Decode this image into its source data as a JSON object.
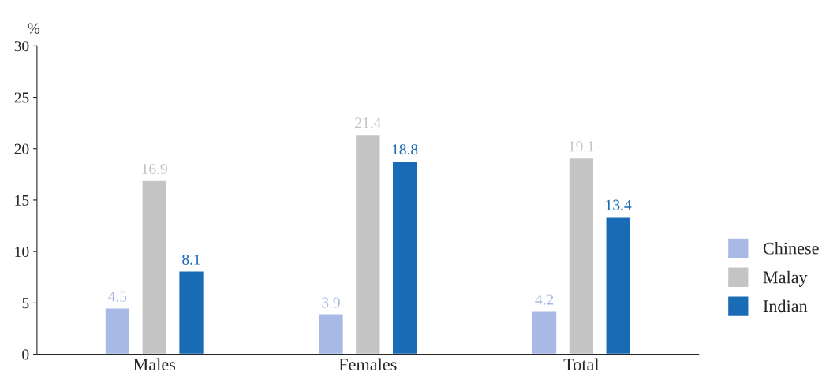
{
  "chart_data": {
    "type": "bar",
    "ylabel": "%",
    "categories": [
      "Males",
      "Females",
      "Total"
    ],
    "series": [
      {
        "name": "Chinese",
        "color": "#a9b9e6",
        "values": [
          4.5,
          3.9,
          4.2
        ]
      },
      {
        "name": "Malay",
        "color": "#c4c4c4",
        "values": [
          16.9,
          21.4,
          19.1
        ]
      },
      {
        "name": "Indian",
        "color": "#1a6bb5",
        "values": [
          8.1,
          18.8,
          13.4
        ]
      }
    ],
    "ylim": [
      0,
      30
    ],
    "yticks": [
      0,
      5,
      10,
      15,
      20,
      25,
      30
    ],
    "data_labels": true,
    "grid": false,
    "legend": "right"
  }
}
